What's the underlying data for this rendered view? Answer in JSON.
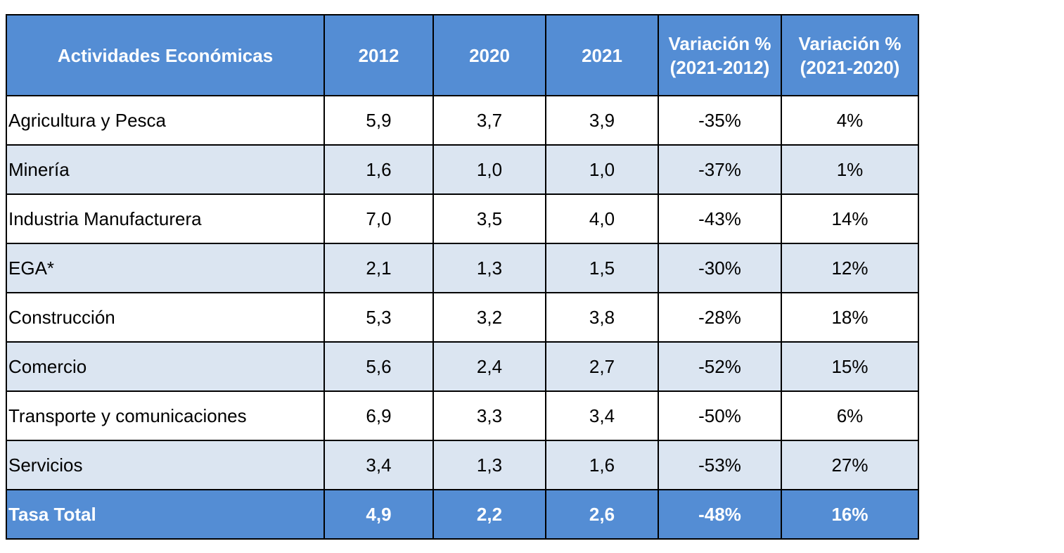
{
  "table": {
    "header": [
      "Actividades  Económicas",
      "2012",
      "2020",
      "2021",
      "Variación %\n(2021-2012)",
      "Variación %\n(2021-2020)"
    ],
    "rows": [
      [
        "Agricultura y Pesca",
        "5,9",
        "3,7",
        "3,9",
        "-35%",
        "4%"
      ],
      [
        "Minería",
        "1,6",
        "1,0",
        "1,0",
        "-37%",
        "1%"
      ],
      [
        "Industria Manufacturera",
        "7,0",
        "3,5",
        "4,0",
        "-43%",
        "14%"
      ],
      [
        "EGA*",
        "2,1",
        "1,3",
        "1,5",
        "-30%",
        "12%"
      ],
      [
        "Construcción",
        "5,3",
        "3,2",
        "3,8",
        "-28%",
        "18%"
      ],
      [
        "Comercio",
        "5,6",
        "2,4",
        "2,7",
        "-52%",
        "15%"
      ],
      [
        "Transporte y comunicaciones",
        "6,9",
        "3,3",
        "3,4",
        "-50%",
        "6%"
      ],
      [
        "Servicios",
        "3,4",
        "1,3",
        "1,6",
        "-53%",
        "27%"
      ],
      [
        "Tasa Total",
        "4,9",
        "2,2",
        "2,6",
        "-48%",
        "16%"
      ]
    ]
  }
}
